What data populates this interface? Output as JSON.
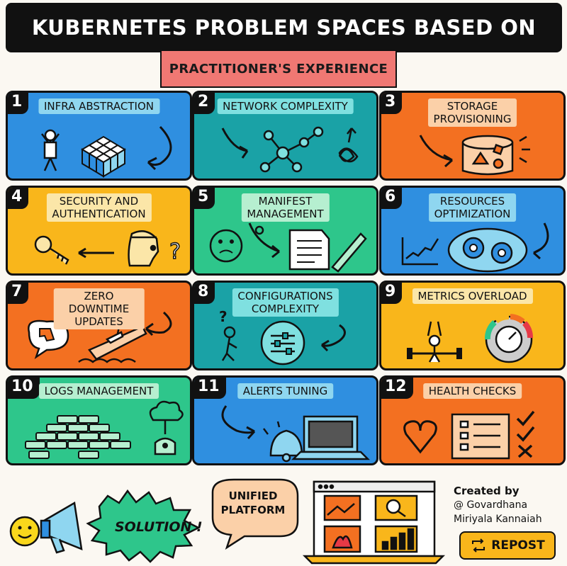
{
  "title": "KUBERNETES PROBLEM SPACES BASED ON",
  "subtitle": "PRACTITIONER'S EXPERIENCE",
  "cards": [
    {
      "num": "1",
      "label": "INFRA ABSTRACTION"
    },
    {
      "num": "2",
      "label": "NETWORK COMPLEXITY"
    },
    {
      "num": "3",
      "label": "STORAGE\nPROVISIONING"
    },
    {
      "num": "4",
      "label": "SECURITY AND\nAUTHENTICATION"
    },
    {
      "num": "5",
      "label": "MANIFEST\nMANAGEMENT"
    },
    {
      "num": "6",
      "label": "RESOURCES\nOPTIMIZATION"
    },
    {
      "num": "7",
      "label": "ZERO DOWNTIME\nUPDATES"
    },
    {
      "num": "8",
      "label": "CONFIGURATIONS\nCOMPLEXITY"
    },
    {
      "num": "9",
      "label": "METRICS OVERLOAD"
    },
    {
      "num": "10",
      "label": "LOGS MANAGEMENT"
    },
    {
      "num": "11",
      "label": "ALERTS TUNING"
    },
    {
      "num": "12",
      "label": "HEALTH CHECKS"
    }
  ],
  "solution": "SOLUTION !",
  "unified": "UNIFIED\nPLATFORM",
  "credit": {
    "title": "Created by",
    "name": "@ Govardhana\nMiriyala Kannaiah"
  },
  "repost": "REPOST",
  "colors": {
    "blue": "#2f8fe0",
    "teal": "#1aa2a6",
    "orange": "#f37021",
    "yellow": "#f9b61b",
    "green": "#2ec68b",
    "banner": "#111111",
    "subbanner": "#f07873"
  }
}
